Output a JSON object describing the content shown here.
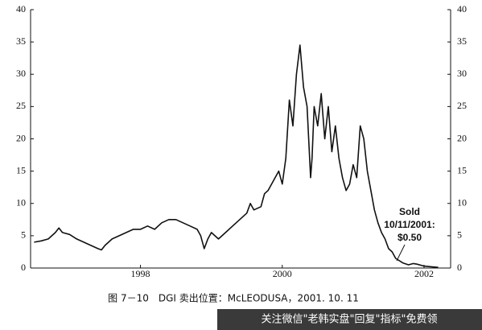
{
  "chart_data": {
    "type": "line",
    "caption": "图 7－10　DGI 卖出位置：McLEODUSA，2001. 10. 11",
    "annotation": [
      "Sold",
      "10/11/2001:",
      "$0.50"
    ],
    "watermark": "关注微信\"老韩实盘\"回复\"指标\"免费领",
    "color": "#111111",
    "x": [
      1996.5,
      1996.6,
      1996.7,
      1996.8,
      1996.85,
      1996.9,
      1997.0,
      1997.1,
      1997.2,
      1997.3,
      1997.4,
      1997.45,
      1997.5,
      1997.6,
      1997.7,
      1997.8,
      1997.9,
      1998.0,
      1998.1,
      1998.2,
      1998.3,
      1998.4,
      1998.5,
      1998.6,
      1998.7,
      1998.8,
      1998.85,
      1998.9,
      1998.95,
      1999.0,
      1999.1,
      1999.2,
      1999.3,
      1999.4,
      1999.5,
      1999.55,
      1999.6,
      1999.7,
      1999.75,
      1999.8,
      1999.9,
      1999.95,
      2000.0,
      2000.05,
      2000.1,
      2000.15,
      2000.2,
      2000.25,
      2000.3,
      2000.35,
      2000.4,
      2000.42,
      2000.45,
      2000.5,
      2000.55,
      2000.6,
      2000.65,
      2000.7,
      2000.75,
      2000.8,
      2000.85,
      2000.9,
      2000.95,
      2001.0,
      2001.05,
      2001.1,
      2001.15,
      2001.2,
      2001.25,
      2001.3,
      2001.35,
      2001.4,
      2001.45,
      2001.5,
      2001.55,
      2001.6,
      2001.7,
      2001.78,
      2001.85,
      2001.9,
      2002.0,
      2002.1,
      2002.2
    ],
    "values": [
      4,
      4.2,
      4.5,
      5.5,
      6.2,
      5.5,
      5.2,
      4.5,
      4,
      3.5,
      3,
      2.8,
      3.5,
      4.5,
      5,
      5.5,
      6,
      6,
      6.5,
      6,
      7,
      7.5,
      7.5,
      7,
      6.5,
      6,
      5,
      3,
      4.5,
      5.5,
      4.5,
      5.5,
      6.5,
      7.5,
      8.5,
      10,
      9,
      9.5,
      11.5,
      12,
      14,
      15,
      13,
      17,
      26,
      22,
      30,
      34.5,
      28,
      25,
      14,
      17,
      25,
      22,
      27,
      20,
      25,
      18,
      22,
      17,
      14,
      12,
      13,
      16,
      14,
      22,
      20,
      15,
      12,
      9,
      7,
      5.5,
      4.5,
      3,
      2.5,
      1.5,
      0.8,
      0.5,
      0.7,
      0.6,
      0.3,
      0.2,
      0.1
    ],
    "xlim": [
      1996.45,
      2002.375
    ],
    "xticks": [
      1998,
      2000,
      2002
    ],
    "ylim": [
      0,
      40
    ],
    "yticks": [
      0,
      5,
      10,
      15,
      20,
      25,
      30,
      35,
      40
    ],
    "y2lim": [
      0,
      40
    ],
    "y2ticks": [
      0,
      5,
      10,
      15,
      20,
      25,
      30,
      35,
      40
    ]
  }
}
